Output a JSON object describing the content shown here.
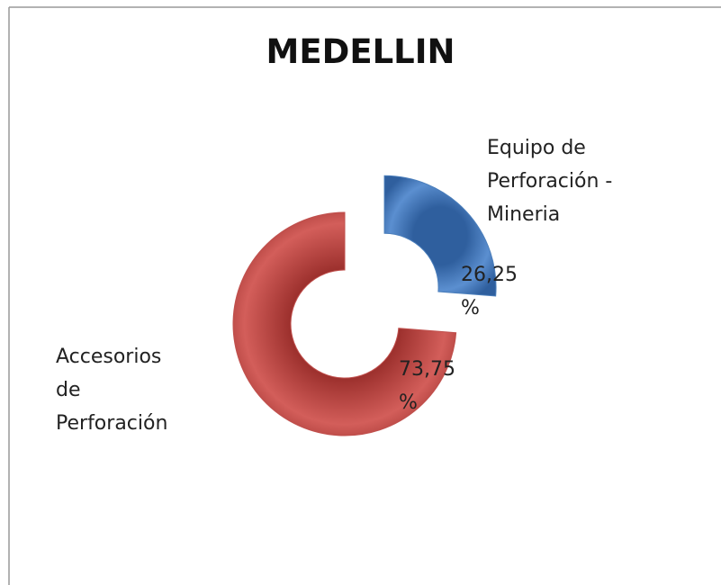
{
  "chart_data": {
    "type": "donut",
    "title": "MEDELLIN",
    "categories": [
      "Equipo de Perforación - Mineria",
      "Accesorios de Perforación"
    ],
    "values": [
      26.25,
      73.75
    ],
    "value_labels": [
      "26,25 %",
      "73,75 %"
    ],
    "colors": [
      "#4a7ebb",
      "#c0504d"
    ]
  }
}
